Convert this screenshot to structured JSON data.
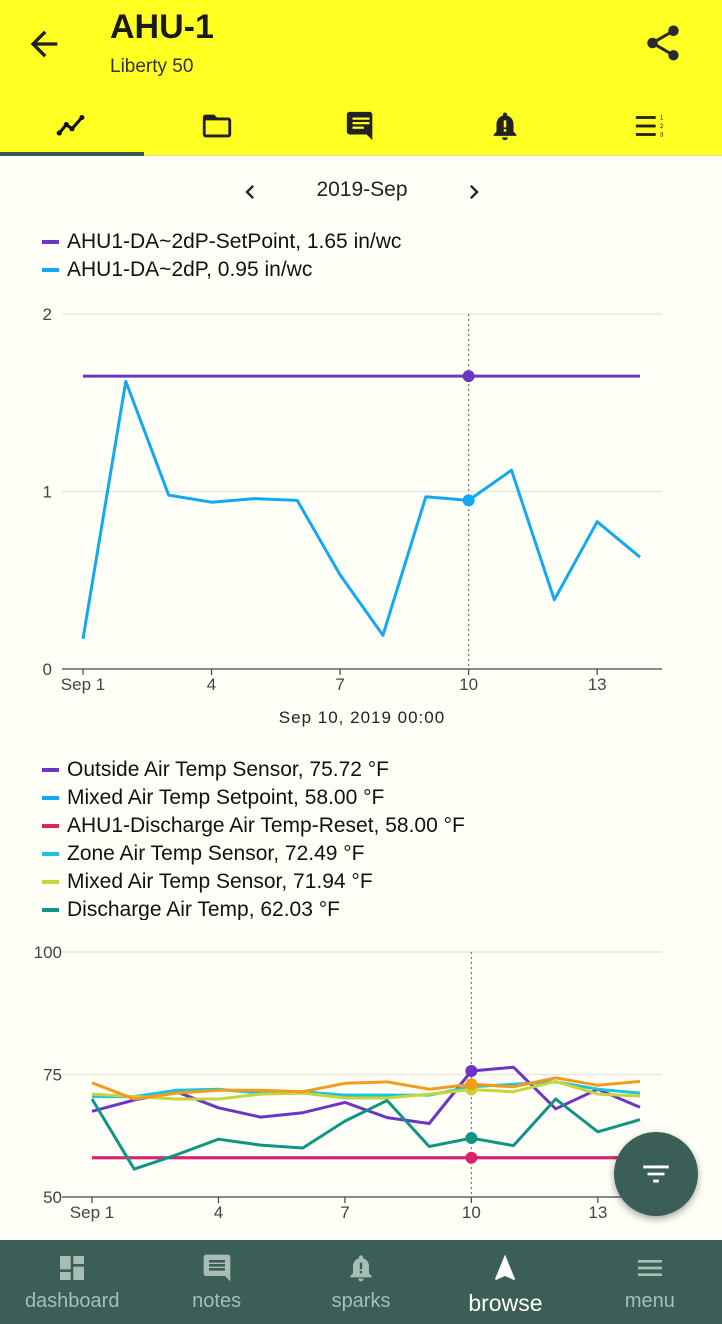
{
  "header": {
    "title": "AHU-1",
    "subtitle": "Liberty 50",
    "accent": "#ffff22",
    "tabs": [
      {
        "icon": "chart-line-icon",
        "active": true
      },
      {
        "icon": "folder-icon",
        "active": false
      },
      {
        "icon": "comment-icon",
        "active": false
      },
      {
        "icon": "bell-alert-icon",
        "active": false
      },
      {
        "icon": "list-numbered-icon",
        "active": false
      }
    ]
  },
  "period": {
    "label": "2019-Sep"
  },
  "chart_data": [
    {
      "type": "line",
      "ylim": [
        0,
        2
      ],
      "yticks": [
        "0",
        "1",
        "2"
      ],
      "xticks": [
        {
          "x": 1,
          "label": "Sep 1"
        },
        {
          "x": 4,
          "label": "4"
        },
        {
          "x": 7,
          "label": "7"
        },
        {
          "x": 10,
          "label": "10"
        },
        {
          "x": 13,
          "label": "13"
        }
      ],
      "xlim": [
        1,
        14
      ],
      "cursor_x": 10,
      "cursor_label": "Sep 10, 2019 00:00",
      "series": [
        {
          "name": "AHU1-DA~2dP-SetPoint, 1.65 in/wc",
          "color": "#6c35c4",
          "x": [
            1,
            14
          ],
          "values": [
            1.65,
            1.65
          ],
          "marker": 1.65
        },
        {
          "name": "AHU1-DA~2dP, 0.95 in/wc",
          "color": "#12a9f4",
          "x": [
            1,
            2,
            3,
            4,
            5,
            6,
            7,
            8,
            9,
            10,
            11,
            12,
            13,
            14
          ],
          "values": [
            0.17,
            1.62,
            0.98,
            0.94,
            0.96,
            0.95,
            0.53,
            0.19,
            0.97,
            0.95,
            1.12,
            0.39,
            0.83,
            0.63
          ],
          "marker": 0.95
        }
      ]
    },
    {
      "type": "line",
      "ylim": [
        50,
        100
      ],
      "yticks": [
        "50",
        "75",
        "100"
      ],
      "xticks": [
        {
          "x": 1,
          "label": "Sep 1"
        },
        {
          "x": 4,
          "label": "4"
        },
        {
          "x": 7,
          "label": "7"
        },
        {
          "x": 10,
          "label": "10"
        },
        {
          "x": 13,
          "label": "13"
        }
      ],
      "xlim": [
        1,
        14
      ],
      "cursor_x": 10,
      "series": [
        {
          "name": "Outside Air Temp Sensor, 75.72 °F",
          "color": "#6c35c4",
          "x": [
            1,
            2,
            3,
            4,
            5,
            6,
            7,
            8,
            9,
            10,
            11,
            12,
            13,
            14
          ],
          "values": [
            67.5,
            69.8,
            71.5,
            68.2,
            66.3,
            67.2,
            69.3,
            66.2,
            65.0,
            75.72,
            76.5,
            68.0,
            72.0,
            68.3
          ],
          "marker": 75.72
        },
        {
          "name": "Mixed Air Temp Setpoint, 58.00 °F",
          "color": "#12a9f4",
          "x": [
            1,
            14
          ],
          "values": [
            58.0,
            58.0
          ],
          "marker": null
        },
        {
          "name": "AHU1-Discharge Air Temp-Reset, 58.00 °F",
          "color": "#e0206a",
          "x": [
            1,
            14
          ],
          "values": [
            58.0,
            58.0
          ],
          "marker": 58.0
        },
        {
          "name": "Zone Air Temp Sensor, 72.49 °F",
          "color": "#1ec3df",
          "x": [
            1,
            2,
            3,
            4,
            5,
            6,
            7,
            8,
            9,
            10,
            11,
            12,
            13,
            14
          ],
          "values": [
            70.5,
            70.5,
            71.8,
            72.0,
            71.2,
            71.5,
            70.8,
            70.8,
            70.8,
            72.49,
            73.0,
            73.5,
            72.0,
            71.2
          ],
          "marker": null
        },
        {
          "name": "Mixed Air Temp Sensor, 71.94 °F",
          "color": "#c6d63a",
          "x": [
            1,
            2,
            3,
            4,
            5,
            6,
            7,
            8,
            9,
            10,
            11,
            12,
            13,
            14
          ],
          "values": [
            71.0,
            70.5,
            70.0,
            70.0,
            71.0,
            71.2,
            70.2,
            70.2,
            71.0,
            71.94,
            71.5,
            73.6,
            71.0,
            70.6
          ],
          "marker": 71.94
        },
        {
          "name": "Discharge Air Temp, 62.03 °F",
          "color": "#109584",
          "x": [
            1,
            2,
            3,
            4,
            5,
            6,
            7,
            8,
            9,
            10,
            11,
            12,
            13,
            14
          ],
          "values": [
            70.0,
            55.7,
            58.6,
            61.8,
            60.6,
            60.0,
            65.5,
            69.7,
            60.3,
            62.03,
            60.5,
            70.0,
            63.3,
            65.8
          ],
          "marker": 62.03
        },
        {
          "name": "",
          "color": "#f39c1c",
          "x": [
            1,
            2,
            3,
            4,
            5,
            6,
            7,
            8,
            9,
            10,
            11,
            12,
            13,
            14
          ],
          "values": [
            73.3,
            70.0,
            71.2,
            71.8,
            71.8,
            71.5,
            73.2,
            73.5,
            72.0,
            73.0,
            72.5,
            74.3,
            72.8,
            73.6
          ],
          "marker": 73.0
        }
      ]
    }
  ],
  "bottom_nav": [
    {
      "label": "dashboard",
      "icon": "dashboard-icon",
      "active": false
    },
    {
      "label": "notes",
      "icon": "notes-icon",
      "active": false
    },
    {
      "label": "sparks",
      "icon": "bell-icon",
      "active": false
    },
    {
      "label": "browse",
      "icon": "navigation-arrow-icon",
      "active": true
    },
    {
      "label": "menu",
      "icon": "hamburger-menu-icon",
      "active": false
    }
  ]
}
